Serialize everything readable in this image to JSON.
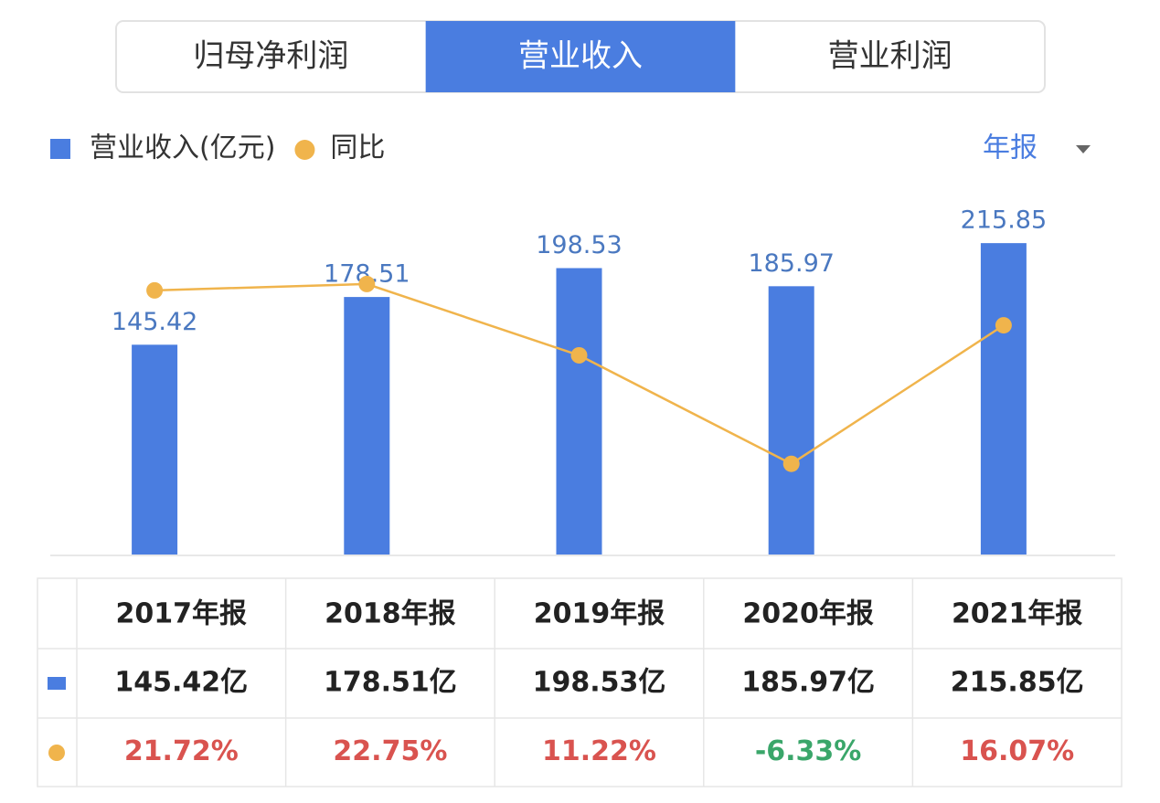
{
  "tabs": [
    "归母净利润",
    "营业收入",
    "营业利润"
  ],
  "active_tab": 1,
  "period": "年报",
  "chart_data": {
    "type": "bar",
    "categories": [
      "2017年报",
      "2018年报",
      "2019年报",
      "2020年报",
      "2021年报"
    ],
    "series": [
      {
        "name": "营业收入(亿元)",
        "type": "bar",
        "color": "#4a7de0",
        "values": [
          145.42,
          178.51,
          198.53,
          185.97,
          215.85
        ]
      },
      {
        "name": "同比",
        "type": "line",
        "axis": "y2",
        "color": "#f0b44c",
        "values": [
          21.72,
          22.75,
          11.22,
          -6.33,
          16.07
        ]
      }
    ],
    "ylim": [
      0,
      240
    ],
    "y2lim": [
      -21,
      35
    ]
  },
  "table": {
    "rows": [
      {
        "cells": [
          "145.42亿",
          "178.51亿",
          "198.53亿",
          "185.97亿",
          "215.85亿"
        ]
      },
      {
        "cells": [
          "21.72%",
          "22.75%",
          "11.22%",
          "-6.33%",
          "16.07%"
        ],
        "colors": [
          "#d9534f",
          "#d9534f",
          "#d9534f",
          "#3aa66a",
          "#d9534f"
        ]
      }
    ]
  }
}
